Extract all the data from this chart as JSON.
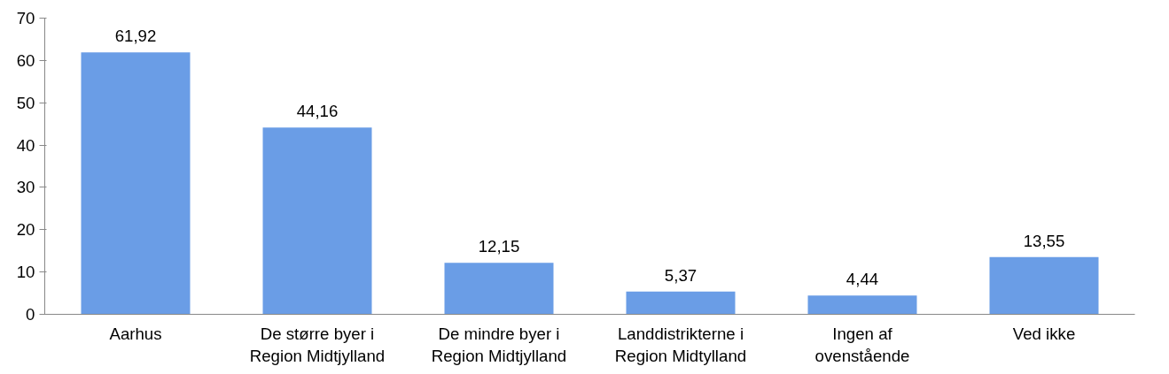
{
  "chart_data": {
    "type": "bar",
    "categories": [
      "Aarhus",
      "De større byer i Region Midtjylland",
      "De mindre byer i Region Midtjylland",
      "Landdistrikterne i Region Midtylland",
      "Ingen af ovenstående",
      "Ved ikke"
    ],
    "values": [
      61.92,
      44.16,
      12.15,
      5.37,
      4.44,
      13.55
    ],
    "value_labels": [
      "61,92",
      "44,16",
      "12,15",
      "5,37",
      "4,44",
      "13,55"
    ],
    "color": "#6a9de6",
    "ylim": [
      0,
      70
    ],
    "yticks": [
      0,
      10,
      20,
      30,
      40,
      50,
      60,
      70
    ],
    "grid": false
  }
}
